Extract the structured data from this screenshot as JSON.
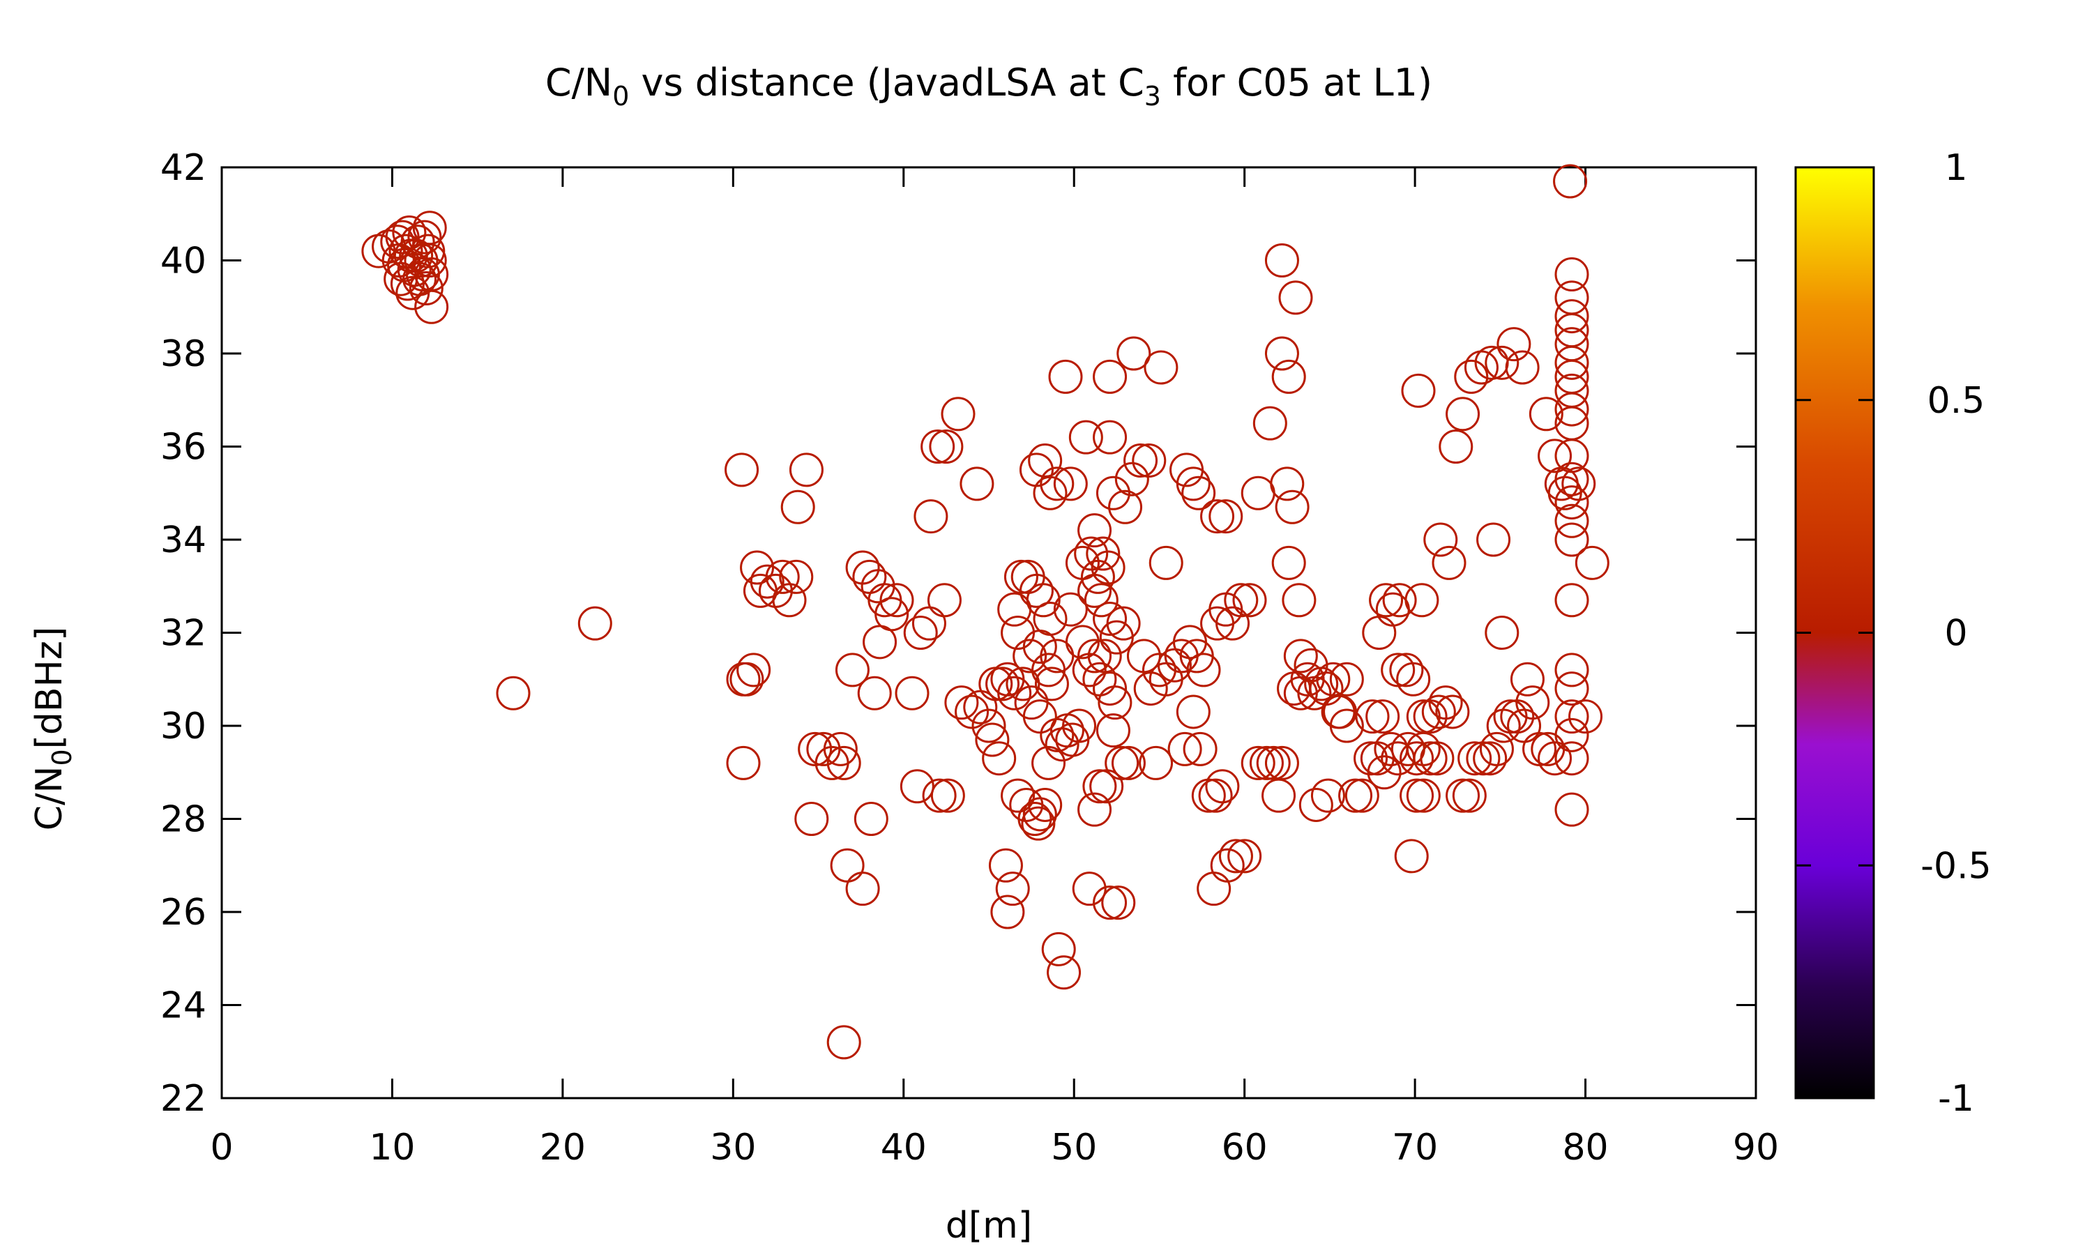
{
  "chart_data": {
    "type": "scatter",
    "title": {
      "main": "C/N",
      "main_sub": "0",
      "rest": " vs distance (JavadLSA at C",
      "rest_sub": "3",
      "tail": " for C05 at L1)"
    },
    "xlabel": "d[m]",
    "ylabel": {
      "main": "C/N",
      "sub": "0",
      "rest": "[dBHz]"
    },
    "xlim": [
      0,
      90
    ],
    "ylim": [
      22,
      42
    ],
    "xticks": [
      "0",
      "10",
      "20",
      "30",
      "40",
      "50",
      "60",
      "70",
      "80",
      "90"
    ],
    "yticks": [
      "22",
      "24",
      "26",
      "28",
      "30",
      "32",
      "34",
      "36",
      "38",
      "40",
      "42"
    ],
    "colorbar": {
      "range": [
        -1,
        1
      ],
      "ticks": [
        "1",
        "0.5",
        "0",
        "-0.5",
        "-1"
      ]
    },
    "marker": "open-circle",
    "point_color": "#b81c00",
    "grid": false,
    "legend": "none",
    "points": [
      [
        9.2,
        40.2
      ],
      [
        9.8,
        40.3
      ],
      [
        10.3,
        40.4
      ],
      [
        10.6,
        40.5
      ],
      [
        10.8,
        40.2
      ],
      [
        11.0,
        40.6
      ],
      [
        11.1,
        40.1
      ],
      [
        11.3,
        39.8
      ],
      [
        11.5,
        40.4
      ],
      [
        11.7,
        40.0
      ],
      [
        11.9,
        40.5
      ],
      [
        12.1,
        40.2
      ],
      [
        12.2,
        40.7
      ],
      [
        12.3,
        39.7
      ],
      [
        10.5,
        39.6
      ],
      [
        10.9,
        39.5
      ],
      [
        11.2,
        39.3
      ],
      [
        11.6,
        39.6
      ],
      [
        12.0,
        39.4
      ],
      [
        12.3,
        39.0
      ],
      [
        10.4,
        40.0
      ],
      [
        10.7,
        39.9
      ],
      [
        11.4,
        40.1
      ],
      [
        11.8,
        39.7
      ],
      [
        12.2,
        40.0
      ],
      [
        17.1,
        30.7
      ],
      [
        21.9,
        32.2
      ],
      [
        30.5,
        35.5
      ],
      [
        34.3,
        35.5
      ],
      [
        33.8,
        34.7
      ],
      [
        31.4,
        33.4
      ],
      [
        32.0,
        33.1
      ],
      [
        31.6,
        32.9
      ],
      [
        32.5,
        32.9
      ],
      [
        32.9,
        33.2
      ],
      [
        33.3,
        32.7
      ],
      [
        33.7,
        33.2
      ],
      [
        30.8,
        31.0
      ],
      [
        31.2,
        31.2
      ],
      [
        30.6,
        31.0
      ],
      [
        30.6,
        29.2
      ],
      [
        34.8,
        29.5
      ],
      [
        35.3,
        29.5
      ],
      [
        35.8,
        29.2
      ],
      [
        36.3,
        29.5
      ],
      [
        36.5,
        29.2
      ],
      [
        34.6,
        28.0
      ],
      [
        36.7,
        27.0
      ],
      [
        37.0,
        31.2
      ],
      [
        37.6,
        26.5
      ],
      [
        38.1,
        28.0
      ],
      [
        36.5,
        23.2
      ],
      [
        37.6,
        33.4
      ],
      [
        38.0,
        33.2
      ],
      [
        38.5,
        33.0
      ],
      [
        38.9,
        32.7
      ],
      [
        39.3,
        32.4
      ],
      [
        39.6,
        32.7
      ],
      [
        38.6,
        31.8
      ],
      [
        38.3,
        30.7
      ],
      [
        40.5,
        30.7
      ],
      [
        41.0,
        32.0
      ],
      [
        41.5,
        32.2
      ],
      [
        41.6,
        34.5
      ],
      [
        42.0,
        36.0
      ],
      [
        42.5,
        36.0
      ],
      [
        43.2,
        36.7
      ],
      [
        42.4,
        32.7
      ],
      [
        44.3,
        35.2
      ],
      [
        40.8,
        28.7
      ],
      [
        42.1,
        28.5
      ],
      [
        42.6,
        28.5
      ],
      [
        43.4,
        30.5
      ],
      [
        44.0,
        30.3
      ],
      [
        44.5,
        30.4
      ],
      [
        45.0,
        30.0
      ],
      [
        45.2,
        29.7
      ],
      [
        45.4,
        30.9
      ],
      [
        45.8,
        30.9
      ],
      [
        45.6,
        29.3
      ],
      [
        46.1,
        31.0
      ],
      [
        46.5,
        30.7
      ],
      [
        46.0,
        27.0
      ],
      [
        46.1,
        26.0
      ],
      [
        46.4,
        26.5
      ],
      [
        46.7,
        28.5
      ],
      [
        47.2,
        28.3
      ],
      [
        47.7,
        28.0
      ],
      [
        48.0,
        28.1
      ],
      [
        48.3,
        28.3
      ],
      [
        47.9,
        27.9
      ],
      [
        46.5,
        32.5
      ],
      [
        46.9,
        33.2
      ],
      [
        47.3,
        33.2
      ],
      [
        47.8,
        32.9
      ],
      [
        48.2,
        32.7
      ],
      [
        48.6,
        32.3
      ],
      [
        46.7,
        32.0
      ],
      [
        47.4,
        31.5
      ],
      [
        48.0,
        31.7
      ],
      [
        48.5,
        31.2
      ],
      [
        49.0,
        31.5
      ],
      [
        47.0,
        30.9
      ],
      [
        47.5,
        30.5
      ],
      [
        48.0,
        30.2
      ],
      [
        48.7,
        30.9
      ],
      [
        48.3,
        35.7
      ],
      [
        47.8,
        35.5
      ],
      [
        48.6,
        35.0
      ],
      [
        49.0,
        35.2
      ],
      [
        49.8,
        35.2
      ],
      [
        49.5,
        37.5
      ],
      [
        48.5,
        29.2
      ],
      [
        49.0,
        29.8
      ],
      [
        49.3,
        29.6
      ],
      [
        49.6,
        29.9
      ],
      [
        49.9,
        29.7
      ],
      [
        50.3,
        30.0
      ],
      [
        49.1,
        25.2
      ],
      [
        49.4,
        24.7
      ],
      [
        50.5,
        33.5
      ],
      [
        49.8,
        32.5
      ],
      [
        50.5,
        31.8
      ],
      [
        50.9,
        31.2
      ],
      [
        51.2,
        31.5
      ],
      [
        51.5,
        31.0
      ],
      [
        51.8,
        31.5
      ],
      [
        52.1,
        30.8
      ],
      [
        52.4,
        30.5
      ],
      [
        51.0,
        33.7
      ],
      [
        51.4,
        33.2
      ],
      [
        51.7,
        33.7
      ],
      [
        52.0,
        33.4
      ],
      [
        51.2,
        32.9
      ],
      [
        51.6,
        32.7
      ],
      [
        52.1,
        32.3
      ],
      [
        52.5,
        31.9
      ],
      [
        52.9,
        32.2
      ],
      [
        50.7,
        36.2
      ],
      [
        51.2,
        34.2
      ],
      [
        52.1,
        36.2
      ],
      [
        52.3,
        35.0
      ],
      [
        52.1,
        37.5
      ],
      [
        53.0,
        34.7
      ],
      [
        53.4,
        35.3
      ],
      [
        53.5,
        38.0
      ],
      [
        53.9,
        35.7
      ],
      [
        54.4,
        35.7
      ],
      [
        55.1,
        37.7
      ],
      [
        52.3,
        29.9
      ],
      [
        52.8,
        29.2
      ],
      [
        51.2,
        28.2
      ],
      [
        51.5,
        28.7
      ],
      [
        51.9,
        28.7
      ],
      [
        50.9,
        26.5
      ],
      [
        52.1,
        26.2
      ],
      [
        52.6,
        26.2
      ],
      [
        53.2,
        29.2
      ],
      [
        54.1,
        31.5
      ],
      [
        54.5,
        30.8
      ],
      [
        55.0,
        31.2
      ],
      [
        55.4,
        31.0
      ],
      [
        55.4,
        33.5
      ],
      [
        54.8,
        29.2
      ],
      [
        55.9,
        31.3
      ],
      [
        56.3,
        31.5
      ],
      [
        56.8,
        31.8
      ],
      [
        57.2,
        31.5
      ],
      [
        57.6,
        31.2
      ],
      [
        57.0,
        30.3
      ],
      [
        56.5,
        29.5
      ],
      [
        57.4,
        29.5
      ],
      [
        56.6,
        35.5
      ],
      [
        57.0,
        35.2
      ],
      [
        57.3,
        35.0
      ],
      [
        58.4,
        34.5
      ],
      [
        58.9,
        34.5
      ],
      [
        58.4,
        32.2
      ],
      [
        58.9,
        32.5
      ],
      [
        59.3,
        32.2
      ],
      [
        59.8,
        32.7
      ],
      [
        60.3,
        32.7
      ],
      [
        57.9,
        28.5
      ],
      [
        58.3,
        28.5
      ],
      [
        58.7,
        28.7
      ],
      [
        58.2,
        26.5
      ],
      [
        59.0,
        27.0
      ],
      [
        59.5,
        27.2
      ],
      [
        60.0,
        27.2
      ],
      [
        60.8,
        29.2
      ],
      [
        61.3,
        29.2
      ],
      [
        61.7,
        29.2
      ],
      [
        62.2,
        29.2
      ],
      [
        62.0,
        28.5
      ],
      [
        60.8,
        35.0
      ],
      [
        61.5,
        36.5
      ],
      [
        62.2,
        40.0
      ],
      [
        62.2,
        38.0
      ],
      [
        62.6,
        37.5
      ],
      [
        63.0,
        39.2
      ],
      [
        62.5,
        35.2
      ],
      [
        62.8,
        34.7
      ],
      [
        62.6,
        33.5
      ],
      [
        63.2,
        32.7
      ],
      [
        62.9,
        30.8
      ],
      [
        63.3,
        30.7
      ],
      [
        63.7,
        31.0
      ],
      [
        64.1,
        30.7
      ],
      [
        64.5,
        30.9
      ],
      [
        64.8,
        30.8
      ],
      [
        65.2,
        31.0
      ],
      [
        65.6,
        30.3
      ],
      [
        66.0,
        31.0
      ],
      [
        63.3,
        31.5
      ],
      [
        63.9,
        31.3
      ],
      [
        64.2,
        28.3
      ],
      [
        64.9,
        28.5
      ],
      [
        65.5,
        30.3
      ],
      [
        66.0,
        30.0
      ],
      [
        66.5,
        28.5
      ],
      [
        66.9,
        28.5
      ],
      [
        67.4,
        29.3
      ],
      [
        67.8,
        29.3
      ],
      [
        68.2,
        29.0
      ],
      [
        68.6,
        29.5
      ],
      [
        69.0,
        29.3
      ],
      [
        67.5,
        30.2
      ],
      [
        68.1,
        30.2
      ],
      [
        67.9,
        32.0
      ],
      [
        68.3,
        32.7
      ],
      [
        68.7,
        32.5
      ],
      [
        69.1,
        32.7
      ],
      [
        69.0,
        31.2
      ],
      [
        69.5,
        31.2
      ],
      [
        69.9,
        31.0
      ],
      [
        70.1,
        28.5
      ],
      [
        70.5,
        28.5
      ],
      [
        69.6,
        29.5
      ],
      [
        70.1,
        29.3
      ],
      [
        70.5,
        29.5
      ],
      [
        70.9,
        29.3
      ],
      [
        71.3,
        29.3
      ],
      [
        70.5,
        30.2
      ],
      [
        70.9,
        30.2
      ],
      [
        71.4,
        30.3
      ],
      [
        71.8,
        30.5
      ],
      [
        72.2,
        30.3
      ],
      [
        69.8,
        27.2
      ],
      [
        70.4,
        32.7
      ],
      [
        70.2,
        37.2
      ],
      [
        71.5,
        34.0
      ],
      [
        72.0,
        33.5
      ],
      [
        72.4,
        36.0
      ],
      [
        72.8,
        36.7
      ],
      [
        73.3,
        37.5
      ],
      [
        73.9,
        37.7
      ],
      [
        74.5,
        37.8
      ],
      [
        75.1,
        37.8
      ],
      [
        75.8,
        38.2
      ],
      [
        76.3,
        37.7
      ],
      [
        74.6,
        34.0
      ],
      [
        75.1,
        32.0
      ],
      [
        72.8,
        28.5
      ],
      [
        73.2,
        28.5
      ],
      [
        73.5,
        29.3
      ],
      [
        74.0,
        29.3
      ],
      [
        74.4,
        29.3
      ],
      [
        74.8,
        29.5
      ],
      [
        75.2,
        30.0
      ],
      [
        75.6,
        30.2
      ],
      [
        76.0,
        30.2
      ],
      [
        76.4,
        30.0
      ],
      [
        76.6,
        31.0
      ],
      [
        76.9,
        30.5
      ],
      [
        77.3,
        29.5
      ],
      [
        77.8,
        29.5
      ],
      [
        78.2,
        29.3
      ],
      [
        77.7,
        36.7
      ],
      [
        78.2,
        35.8
      ],
      [
        78.6,
        35.2
      ],
      [
        78.8,
        35.0
      ],
      [
        79.1,
        41.7
      ],
      [
        79.2,
        39.7
      ],
      [
        79.2,
        39.2
      ],
      [
        79.2,
        38.8
      ],
      [
        79.2,
        38.5
      ],
      [
        79.2,
        38.2
      ],
      [
        79.2,
        37.8
      ],
      [
        79.2,
        37.5
      ],
      [
        79.2,
        37.2
      ],
      [
        79.2,
        36.8
      ],
      [
        79.2,
        36.5
      ],
      [
        79.2,
        35.8
      ],
      [
        79.2,
        35.3
      ],
      [
        79.2,
        34.8
      ],
      [
        79.2,
        34.4
      ],
      [
        79.2,
        34.0
      ],
      [
        79.2,
        32.7
      ],
      [
        79.2,
        31.2
      ],
      [
        79.2,
        30.8
      ],
      [
        79.2,
        30.2
      ],
      [
        79.2,
        29.8
      ],
      [
        79.2,
        29.3
      ],
      [
        79.2,
        28.2
      ],
      [
        79.6,
        35.2
      ],
      [
        80.0,
        30.2
      ],
      [
        80.4,
        33.5
      ]
    ]
  }
}
